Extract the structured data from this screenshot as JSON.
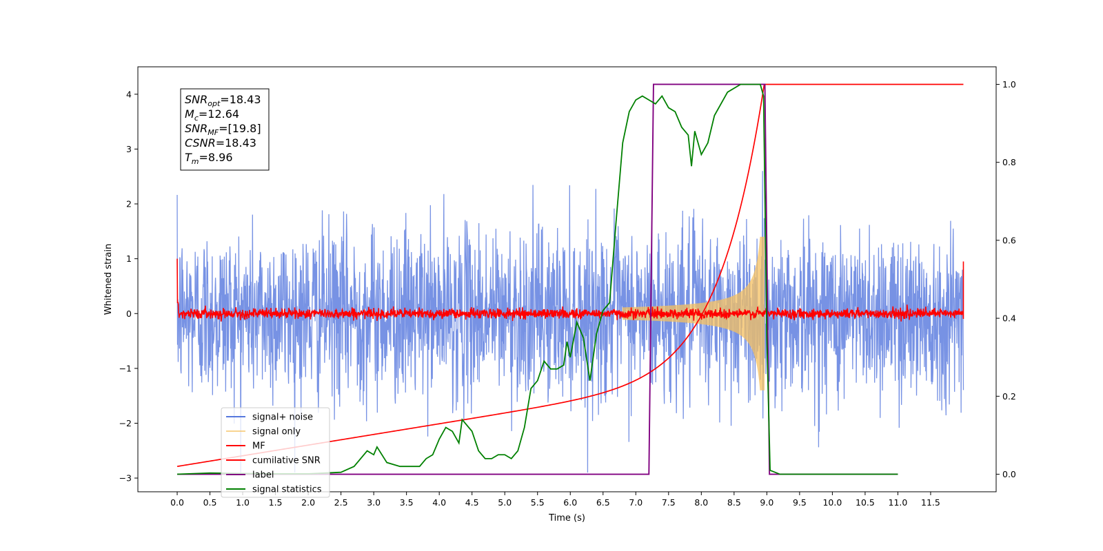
{
  "chart_data": {
    "type": "line",
    "xlabel": "Time (s)",
    "ylabel": "Whitened strain",
    "xlim": [
      -0.6,
      12.5
    ],
    "ylim": [
      -3.25,
      4.5
    ],
    "y2lim": [
      -0.045,
      1.045
    ],
    "xticks": [
      "0.0",
      "0.5",
      "1.0",
      "1.5",
      "2.0",
      "2.5",
      "3.0",
      "3.5",
      "4.0",
      "4.5",
      "5.0",
      "5.5",
      "6.0",
      "6.5",
      "7.0",
      "7.5",
      "8.0",
      "8.5",
      "9.0",
      "9.5",
      "10.0",
      "10.5",
      "11.0",
      "11.5"
    ],
    "yticks": [
      "−3",
      "−2",
      "−1",
      "0",
      "1",
      "2",
      "3",
      "4"
    ],
    "y2ticks": [
      "0.0",
      "0.2",
      "0.4",
      "0.6",
      "0.8",
      "1.0"
    ],
    "info_box": [
      {
        "base": "SNR",
        "sub": "opt",
        "value": "=18.43"
      },
      {
        "base": "M",
        "sub": "c",
        "value": "=12.64"
      },
      {
        "base": "SNR",
        "sub": "MF",
        "value": "=[19.8]"
      },
      {
        "base": "CSNR",
        "sub": "",
        "value": "=18.43"
      },
      {
        "base": "T",
        "sub": "m",
        "value": "=8.96"
      }
    ],
    "legend": {
      "placement": "lower-left",
      "entries": [
        {
          "label": "signal+ noise",
          "color": "#5577dd"
        },
        {
          "label": "signal only",
          "color": "#f5c060"
        },
        {
          "label": "MF",
          "color": "#ff0000"
        },
        {
          "label": "cumilative SNR",
          "color": "#ff0000"
        },
        {
          "label": "label",
          "color": "#800080"
        },
        {
          "label": "signal statistics",
          "color": "#008000"
        }
      ]
    },
    "series": [
      {
        "name": "signal+ noise",
        "axis": "left",
        "description_level": "noise amplitude ~1.4 std, spans about -2.9 to 2.6",
        "x_range": [
          0.0,
          12.0
        ],
        "color": "#5577dd"
      },
      {
        "name": "signal only",
        "axis": "left",
        "chirp_end": 8.96,
        "max_amplitude": 1.4,
        "color": "#f5c060"
      },
      {
        "name": "MF",
        "axis": "left",
        "level": 0.0,
        "start_value": 1.0,
        "end_value": 0.95,
        "color": "#ff0000"
      },
      {
        "name": "cumilative SNR",
        "axis": "right",
        "points": [
          [
            0.0,
            0.02
          ],
          [
            1.0,
            0.04
          ],
          [
            2.0,
            0.07
          ],
          [
            3.0,
            0.1
          ],
          [
            4.0,
            0.13
          ],
          [
            5.0,
            0.17
          ],
          [
            6.0,
            0.22
          ],
          [
            6.5,
            0.25
          ],
          [
            7.0,
            0.27
          ],
          [
            7.5,
            0.31
          ],
          [
            8.0,
            0.38
          ],
          [
            8.5,
            0.5
          ],
          [
            8.8,
            0.7
          ],
          [
            8.95,
            0.92
          ],
          [
            8.97,
            1.0
          ],
          [
            12.0,
            1.0
          ]
        ],
        "color": "#ff0000"
      },
      {
        "name": "label",
        "axis": "right",
        "points": [
          [
            0.0,
            0.0
          ],
          [
            7.2,
            0.0
          ],
          [
            7.27,
            1.0
          ],
          [
            8.97,
            1.0
          ],
          [
            9.04,
            0.0
          ],
          [
            11.0,
            0.0
          ]
        ],
        "color": "#800080"
      },
      {
        "name": "signal statistics",
        "axis": "right",
        "points": [
          [
            0.0,
            0.0
          ],
          [
            0.5,
            0.003
          ],
          [
            1.0,
            0.002
          ],
          [
            1.5,
            0.001
          ],
          [
            2.0,
            0.001
          ],
          [
            2.5,
            0.005
          ],
          [
            2.7,
            0.02
          ],
          [
            2.9,
            0.06
          ],
          [
            3.0,
            0.05
          ],
          [
            3.05,
            0.07
          ],
          [
            3.2,
            0.03
          ],
          [
            3.4,
            0.02
          ],
          [
            3.5,
            0.02
          ],
          [
            3.6,
            0.02
          ],
          [
            3.7,
            0.02
          ],
          [
            3.8,
            0.04
          ],
          [
            3.9,
            0.05
          ],
          [
            4.0,
            0.09
          ],
          [
            4.1,
            0.12
          ],
          [
            4.2,
            0.11
          ],
          [
            4.3,
            0.08
          ],
          [
            4.35,
            0.14
          ],
          [
            4.5,
            0.11
          ],
          [
            4.6,
            0.06
          ],
          [
            4.7,
            0.04
          ],
          [
            4.8,
            0.04
          ],
          [
            4.9,
            0.05
          ],
          [
            5.0,
            0.05
          ],
          [
            5.1,
            0.04
          ],
          [
            5.2,
            0.06
          ],
          [
            5.3,
            0.12
          ],
          [
            5.4,
            0.22
          ],
          [
            5.5,
            0.24
          ],
          [
            5.6,
            0.29
          ],
          [
            5.7,
            0.27
          ],
          [
            5.8,
            0.27
          ],
          [
            5.9,
            0.28
          ],
          [
            5.95,
            0.34
          ],
          [
            6.0,
            0.3
          ],
          [
            6.1,
            0.39
          ],
          [
            6.2,
            0.35
          ],
          [
            6.3,
            0.24
          ],
          [
            6.4,
            0.36
          ],
          [
            6.5,
            0.42
          ],
          [
            6.6,
            0.44
          ],
          [
            6.7,
            0.65
          ],
          [
            6.75,
            0.75
          ],
          [
            6.8,
            0.85
          ],
          [
            6.9,
            0.93
          ],
          [
            7.0,
            0.96
          ],
          [
            7.1,
            0.97
          ],
          [
            7.2,
            0.96
          ],
          [
            7.3,
            0.95
          ],
          [
            7.4,
            0.97
          ],
          [
            7.5,
            0.94
          ],
          [
            7.6,
            0.93
          ],
          [
            7.7,
            0.89
          ],
          [
            7.8,
            0.87
          ],
          [
            7.85,
            0.79
          ],
          [
            7.9,
            0.88
          ],
          [
            8.0,
            0.82
          ],
          [
            8.1,
            0.85
          ],
          [
            8.2,
            0.92
          ],
          [
            8.4,
            0.98
          ],
          [
            8.6,
            1.0
          ],
          [
            8.9,
            1.0
          ],
          [
            8.95,
            0.97
          ],
          [
            9.0,
            0.35
          ],
          [
            9.05,
            0.01
          ],
          [
            9.2,
            0.0
          ],
          [
            11.0,
            0.0
          ]
        ],
        "color": "#008000"
      }
    ]
  }
}
